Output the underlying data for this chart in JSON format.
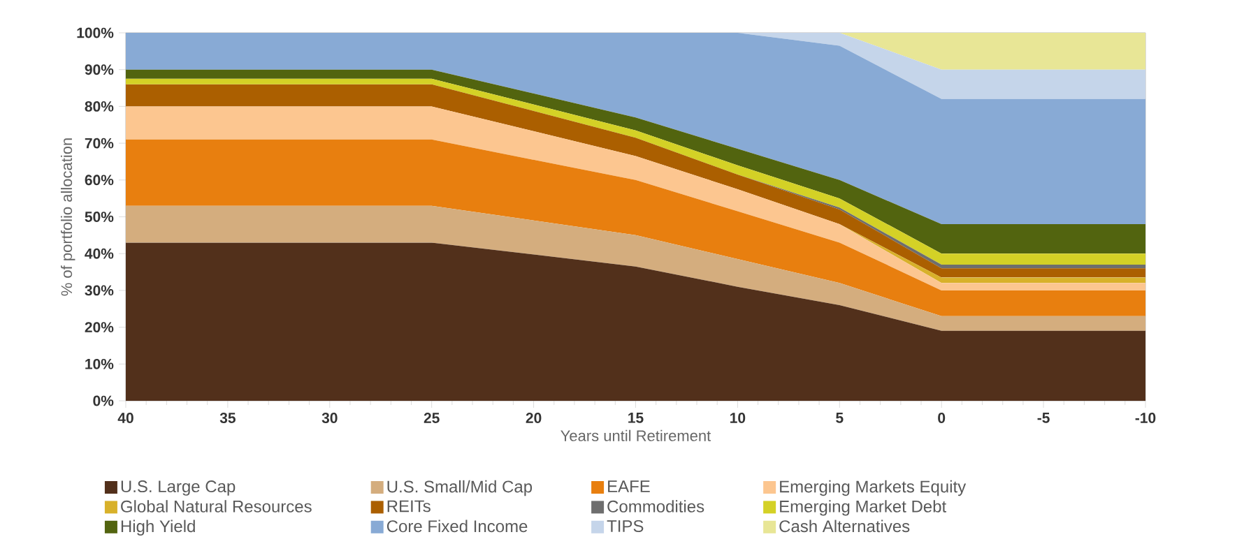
{
  "chart_data": {
    "type": "area",
    "stacked": true,
    "xlabel": "Years until Retirement",
    "ylabel": "% of portfolio allocation",
    "x": [
      40,
      25,
      15,
      10,
      5,
      0,
      -10
    ],
    "xlim": [
      40,
      -10
    ],
    "xticks": [
      40,
      35,
      30,
      25,
      20,
      15,
      10,
      5,
      0,
      -5,
      -10
    ],
    "ylim": [
      0,
      100
    ],
    "yticks": [
      {
        "value": 0,
        "label": "0%"
      },
      {
        "value": 10,
        "label": "10%"
      },
      {
        "value": 20,
        "label": "20%"
      },
      {
        "value": 30,
        "label": "30%"
      },
      {
        "value": 40,
        "label": "40%"
      },
      {
        "value": 50,
        "label": "50%"
      },
      {
        "value": 60,
        "label": "60%"
      },
      {
        "value": 70,
        "label": "70%"
      },
      {
        "value": 80,
        "label": "80%"
      },
      {
        "value": 90,
        "label": "90%"
      },
      {
        "value": 100,
        "label": "100%"
      }
    ],
    "legend": "bottom",
    "series": [
      {
        "name": "U.S. Large Cap",
        "color": "#52301b",
        "values": [
          43,
          43,
          36.5,
          31,
          26,
          19,
          19
        ]
      },
      {
        "name": "U.S. Small/Mid Cap",
        "color": "#d4ad7e",
        "values": [
          10,
          10,
          8.5,
          7.5,
          6,
          4,
          4
        ]
      },
      {
        "name": "EAFE",
        "color": "#e87f0f",
        "values": [
          18,
          18,
          15,
          13,
          11,
          7,
          7
        ]
      },
      {
        "name": "Emerging Markets Equity",
        "color": "#fcc690",
        "values": [
          9,
          9,
          6.5,
          6,
          5,
          2,
          2
        ]
      },
      {
        "name": "Global Natural Resources",
        "color": "#d8b12a",
        "values": [
          0,
          0,
          0,
          0,
          0,
          1.5,
          1.5
        ]
      },
      {
        "name": "REITs",
        "color": "#ab5f00",
        "values": [
          6,
          6,
          5,
          4,
          4,
          2.5,
          2.5
        ]
      },
      {
        "name": "Commodities",
        "color": "#6e6e6e",
        "values": [
          0,
          0,
          0,
          0,
          0.5,
          1,
          1
        ]
      },
      {
        "name": "Emerging Market Debt",
        "color": "#d4d126",
        "values": [
          1.5,
          1.5,
          2,
          2.5,
          2.5,
          3,
          3
        ]
      },
      {
        "name": "High Yield",
        "color": "#52640f",
        "values": [
          2.5,
          2.5,
          3.5,
          4.5,
          5,
          8,
          8
        ]
      },
      {
        "name": "Core Fixed Income",
        "color": "#88aad5",
        "values": [
          10,
          10,
          23,
          31.5,
          36.5,
          34,
          34
        ]
      },
      {
        "name": "TIPS",
        "color": "#c5d5ea",
        "values": [
          0,
          0,
          0,
          0,
          3.5,
          8,
          8
        ]
      },
      {
        "name": "Cash Alternatives",
        "color": "#e8e696",
        "values": [
          0,
          0,
          0,
          0,
          0,
          10,
          10
        ]
      }
    ]
  }
}
